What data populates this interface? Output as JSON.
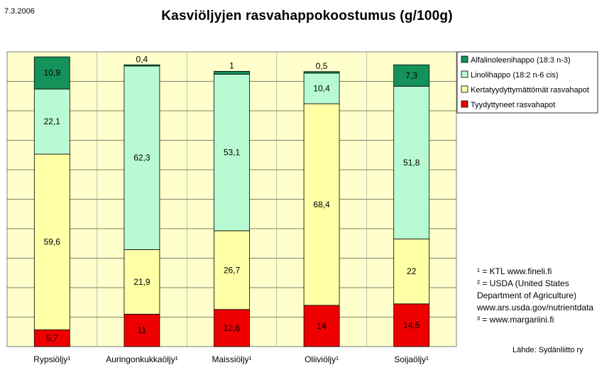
{
  "date": "7.3.2006",
  "chart_data": {
    "type": "bar",
    "stacked": true,
    "title": "Kasviöljyjen rasvahappokoostumus (g/100g)",
    "xlabel": "",
    "ylabel": "",
    "ylim": [
      0,
      100
    ],
    "grid": true,
    "legend_position": "right",
    "categories": [
      "Rypsiöljy¹",
      "Auringonkukkaöljy¹",
      "Maissiöljy¹",
      "Oliiviöljy¹",
      "Soijaöljy¹"
    ],
    "series": [
      {
        "name": "Tyydyttyneet rasvahapot",
        "color": "#ee0000",
        "values": [
          5.7,
          11,
          12.6,
          14,
          14.5
        ],
        "labels": [
          "5,7",
          "11",
          "12,6",
          "14",
          "14,5"
        ]
      },
      {
        "name": "Kertatyydyttymättömät rasvahapot",
        "color": "#ffffa6",
        "values": [
          59.6,
          21.9,
          26.7,
          68.4,
          22
        ],
        "labels": [
          "59,6",
          "21,9",
          "26,7",
          "68,4",
          "22"
        ]
      },
      {
        "name": "Linolihappo (18:2 n-6 cis)",
        "color": "#b8fbd2",
        "values": [
          22.1,
          62.3,
          53.1,
          10.4,
          51.8
        ],
        "labels": [
          "22,1",
          "62,3",
          "53,1",
          "10,4",
          "51,8"
        ]
      },
      {
        "name": "Alfalinoleenihappo (18:3 n-3)",
        "color": "#15915a",
        "values": [
          10.9,
          0.4,
          1,
          0.5,
          7.3
        ],
        "labels": [
          "10,9",
          "0,4",
          "1",
          "0,5",
          "7,3"
        ]
      }
    ]
  },
  "colors": {
    "plot_background": "#ffffcc",
    "gridline": "#000000"
  },
  "notes": [
    "¹ = KTL www.fineli.fi",
    "² = USDA (United States Department of Agriculture) www.ars.usda.gov/nutrientdata",
    "³ = www.margariini.fi"
  ],
  "source": "Lähde: Sydänliitto ry"
}
